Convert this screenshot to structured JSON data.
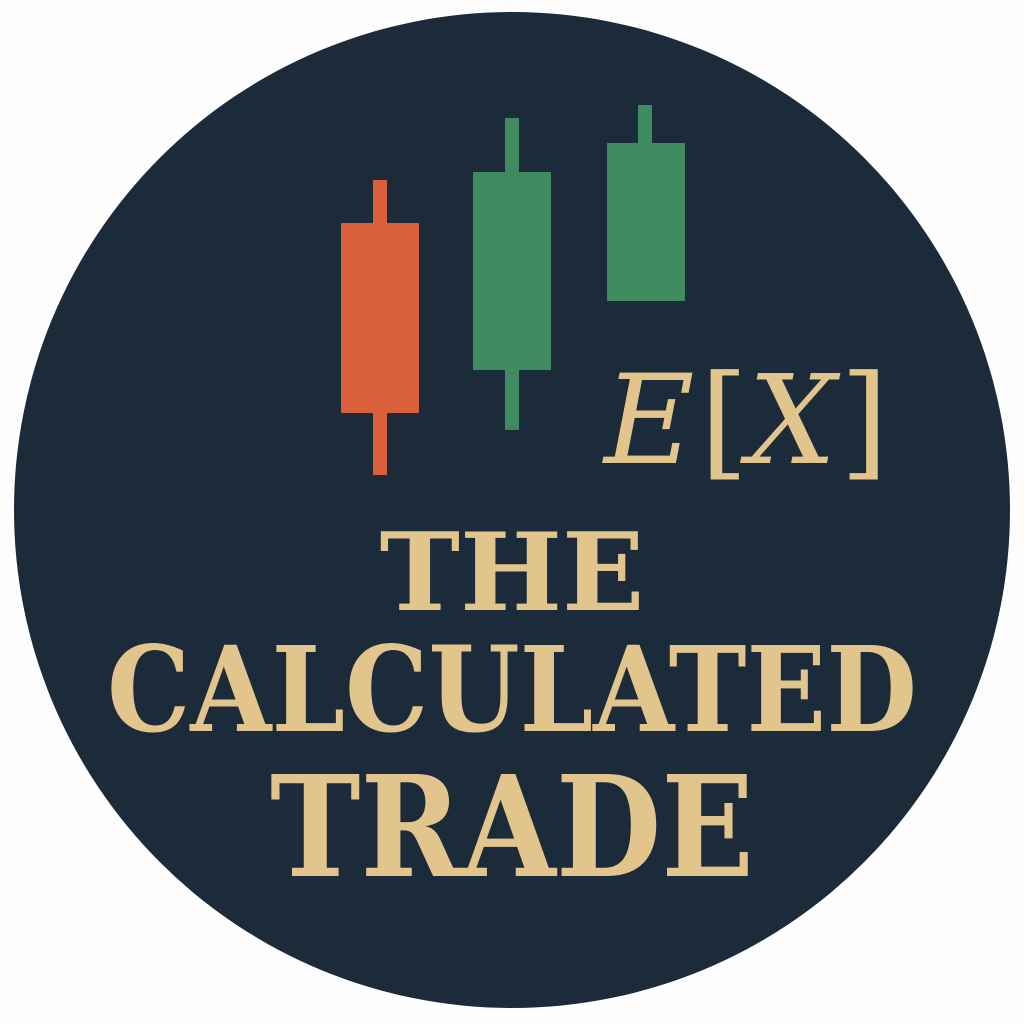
{
  "logo": {
    "title_line_1": "THE",
    "title_line_2": "CALCULATED",
    "title_line_3": "TRADE",
    "expectation_symbol": {
      "letter": "E",
      "open_bracket": "[",
      "variable": "X",
      "close_bracket": "]"
    },
    "candlesticks": [
      {
        "direction": "down",
        "color": "#d9603b"
      },
      {
        "direction": "up",
        "color": "#3f8a5f"
      },
      {
        "direction": "up",
        "color": "#3f8a5f"
      }
    ],
    "colors": {
      "background": "#1c2b39",
      "text": "#e2c58d",
      "bearish": "#d9603b",
      "bullish": "#3f8a5f",
      "border": "#fdfdfd"
    }
  }
}
